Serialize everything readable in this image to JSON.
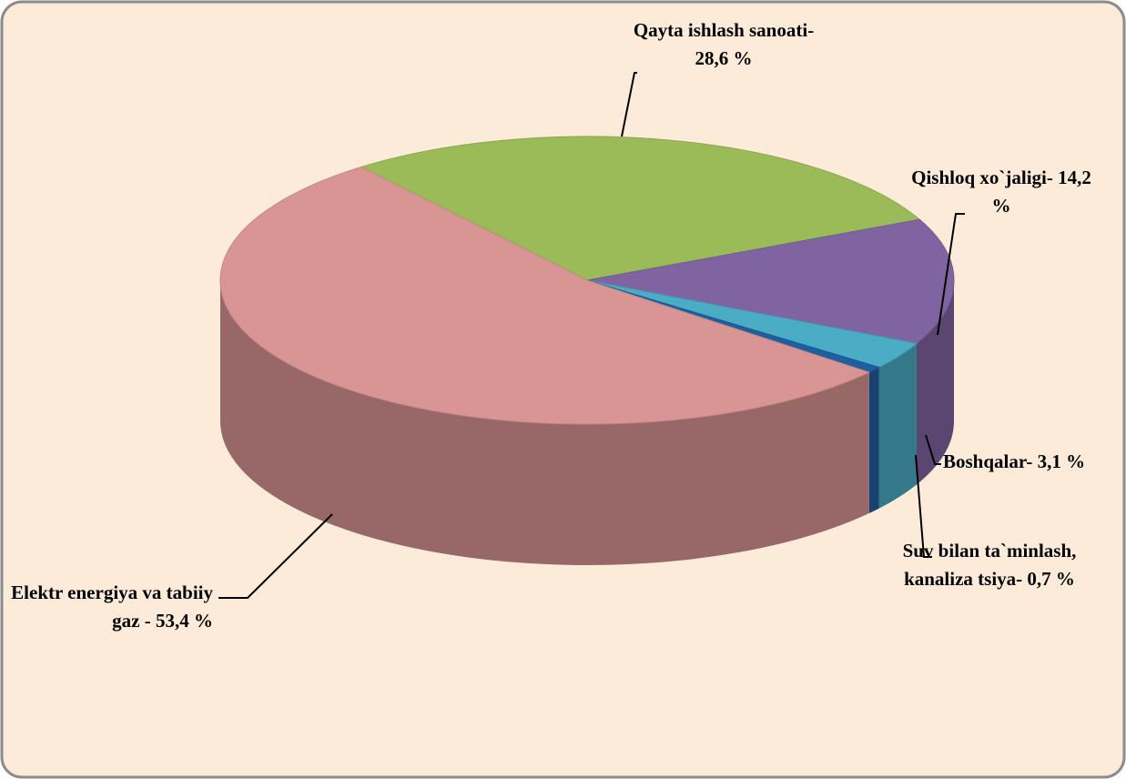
{
  "chart_data": {
    "type": "pie",
    "categories": [
      "Qayta ishlash sanoati-",
      "Qishloq xo`jaligi-",
      "Boshqalar-",
      "Suv bilan ta`minlash, kanaliza tsiya-",
      "Elektr energiya va tabiiy gaz -"
    ],
    "values": [
      28.6,
      14.2,
      3.1,
      0.7,
      53.4
    ],
    "value_labels": [
      "28,6 %",
      "14,2 %",
      "3,1 %",
      "0,7 %",
      "53,4 %"
    ],
    "colors": [
      "#9bbb59",
      "#8064a2",
      "#4bacc6",
      "#1f5f9f",
      "#d99594"
    ]
  }
}
